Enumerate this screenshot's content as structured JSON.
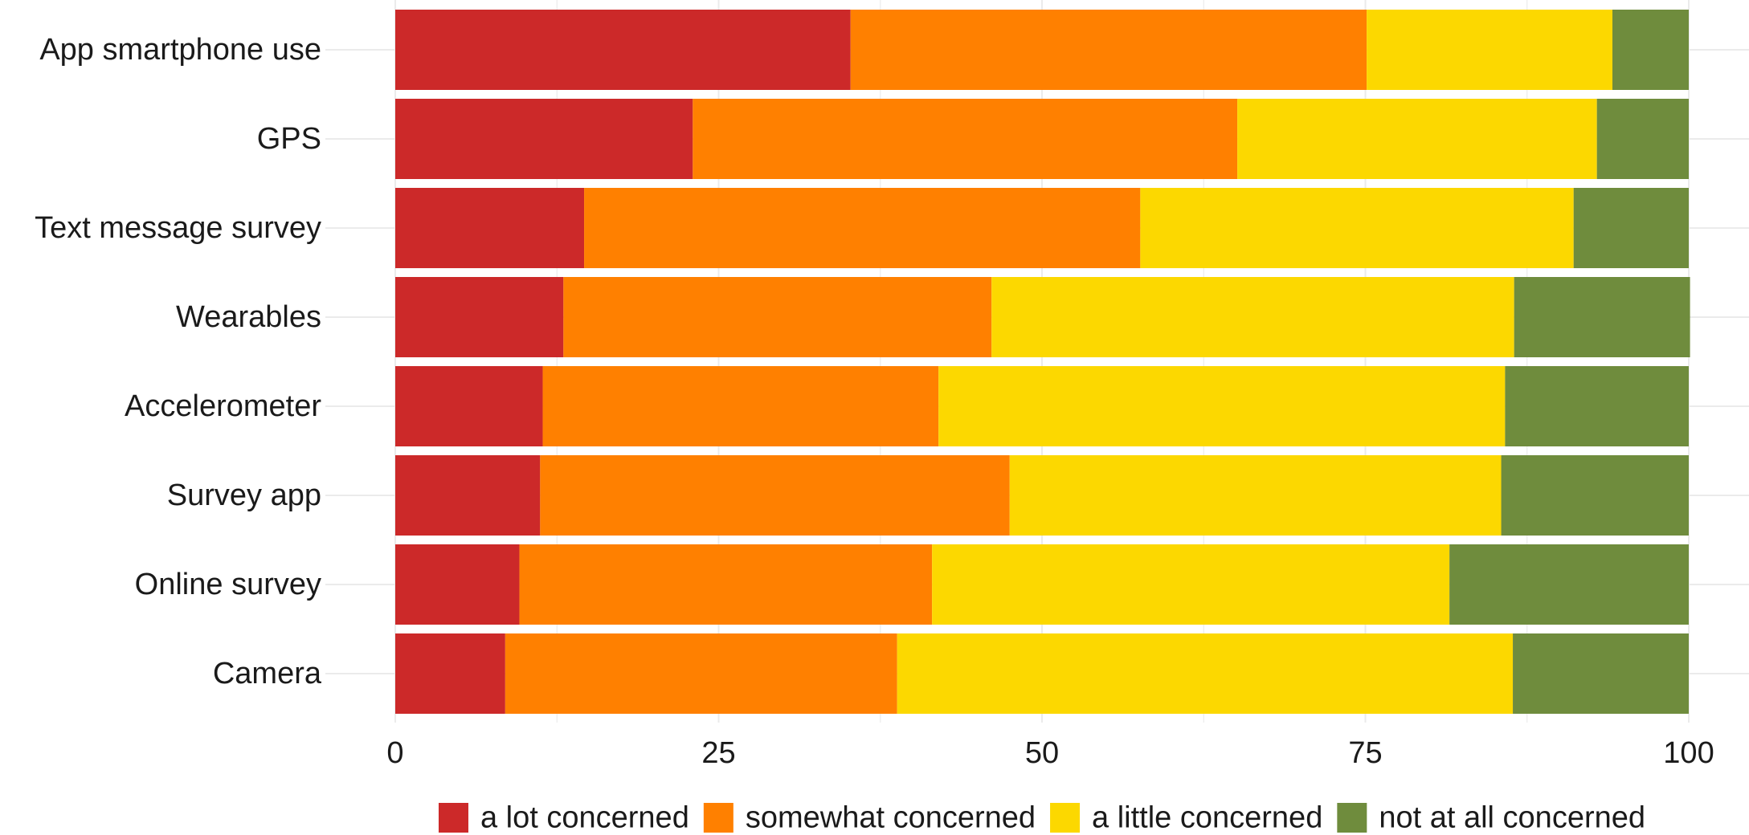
{
  "chart_data": {
    "type": "bar",
    "orientation": "horizontal",
    "stacked": true,
    "title": "",
    "xlabel": "",
    "ylabel": "",
    "xlim": [
      0,
      100
    ],
    "xticks": [
      0,
      25,
      50,
      75,
      100
    ],
    "grid": true,
    "legend_position": "bottom",
    "categories": [
      "App smartphone use",
      "GPS",
      "Text message survey",
      "Wearables",
      "Accelerometer",
      "Survey app",
      "Online survey",
      "Camera"
    ],
    "series": [
      {
        "name": "a lot concerned",
        "color": "#cc2929",
        "values": [
          35.2,
          23.0,
          14.6,
          13.0,
          11.4,
          11.2,
          9.6,
          8.5
        ]
      },
      {
        "name": "somewhat concerned",
        "color": "#ff8000",
        "values": [
          39.9,
          42.1,
          43.0,
          33.1,
          30.6,
          36.3,
          31.9,
          30.3
        ]
      },
      {
        "name": "a little concerned",
        "color": "#fcd800",
        "values": [
          19.0,
          27.8,
          33.5,
          40.4,
          43.8,
          38.0,
          40.0,
          47.6
        ]
      },
      {
        "name": "not at all concerned",
        "color": "#6f8c3d",
        "values": [
          5.9,
          7.1,
          8.9,
          13.6,
          14.2,
          14.5,
          18.5,
          13.6
        ]
      }
    ]
  }
}
